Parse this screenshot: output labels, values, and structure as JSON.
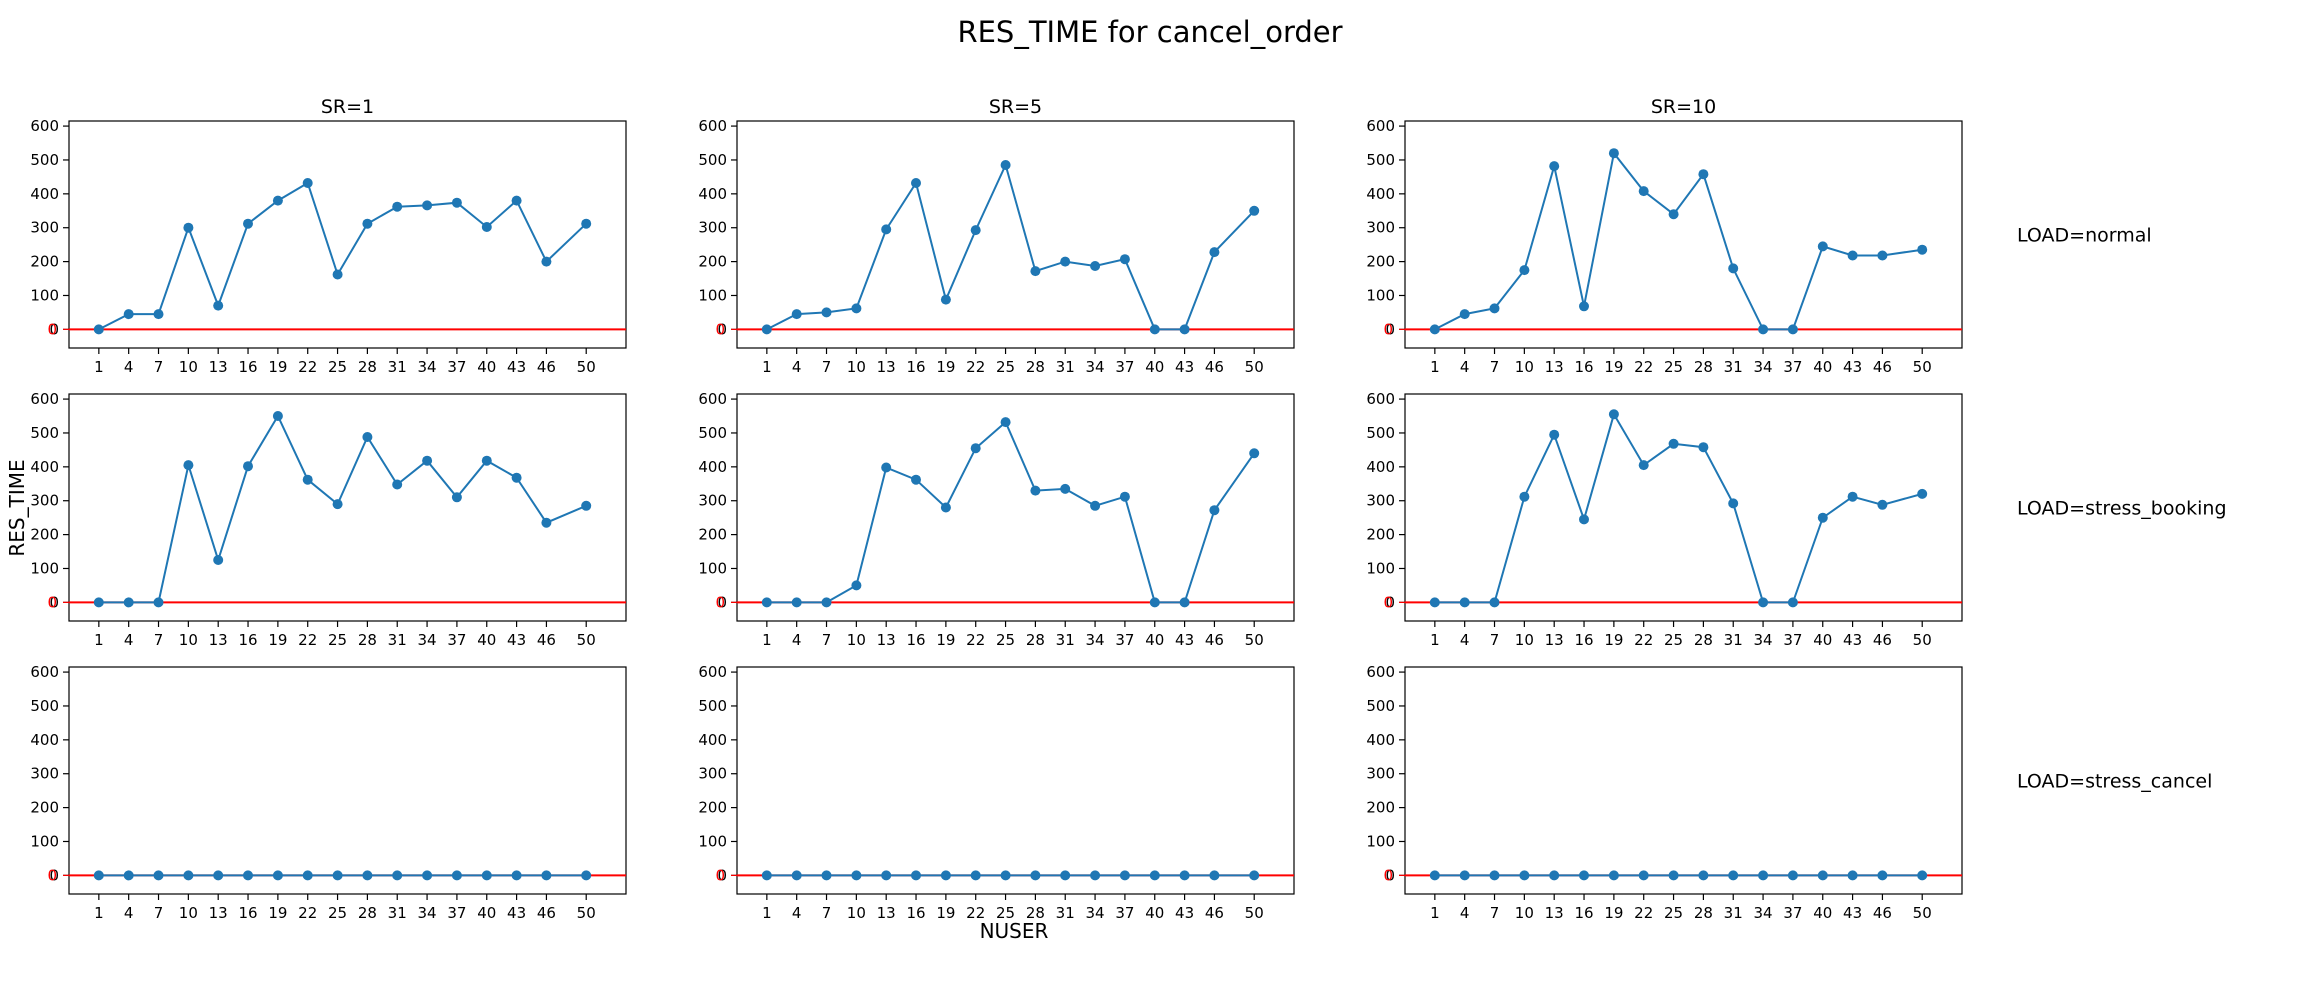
{
  "figure": {
    "title": "RES_TIME for cancel_order",
    "xlabel": "NUSER",
    "ylabel": "RES_TIME",
    "line_color": "#1f77b4",
    "reference_line_color": "#ff0000",
    "reference_value": 0
  },
  "chart_data": [
    {
      "type": "line",
      "col_title": "SR=1",
      "row_label": "LOAD=normal",
      "x": [
        1,
        4,
        7,
        10,
        13,
        16,
        19,
        22,
        25,
        28,
        31,
        34,
        37,
        40,
        43,
        46,
        50
      ],
      "y": [
        0,
        45,
        45,
        300,
        70,
        312,
        380,
        432,
        162,
        312,
        362,
        366,
        374,
        302,
        380,
        200,
        312
      ],
      "ylim": [
        -55,
        615
      ],
      "yticks": [
        0,
        100,
        200,
        300,
        400,
        500,
        600
      ]
    },
    {
      "type": "line",
      "col_title": "SR=5",
      "row_label": "LOAD=normal",
      "x": [
        1,
        4,
        7,
        10,
        13,
        16,
        19,
        22,
        25,
        28,
        31,
        34,
        37,
        40,
        43,
        46,
        50
      ],
      "y": [
        0,
        45,
        50,
        62,
        295,
        432,
        88,
        293,
        485,
        172,
        200,
        187,
        207,
        0,
        0,
        228,
        350
      ],
      "ylim": [
        -55,
        615
      ],
      "yticks": [
        0,
        100,
        200,
        300,
        400,
        500,
        600
      ]
    },
    {
      "type": "line",
      "col_title": "SR=10",
      "row_label": "LOAD=normal",
      "x": [
        1,
        4,
        7,
        10,
        13,
        16,
        19,
        22,
        25,
        28,
        31,
        34,
        37,
        40,
        43,
        46,
        50
      ],
      "y": [
        0,
        45,
        62,
        175,
        482,
        68,
        520,
        408,
        340,
        458,
        180,
        0,
        0,
        245,
        218,
        218,
        235
      ],
      "ylim": [
        -55,
        615
      ],
      "yticks": [
        0,
        100,
        200,
        300,
        400,
        500,
        600
      ]
    },
    {
      "type": "line",
      "col_title": "SR=1",
      "row_label": "LOAD=stress_booking",
      "x": [
        1,
        4,
        7,
        10,
        13,
        16,
        19,
        22,
        25,
        28,
        31,
        34,
        37,
        40,
        43,
        46,
        50
      ],
      "y": [
        0,
        0,
        0,
        405,
        125,
        402,
        550,
        362,
        290,
        488,
        348,
        418,
        310,
        418,
        368,
        235,
        285
      ],
      "ylim": [
        -55,
        615
      ],
      "yticks": [
        0,
        100,
        200,
        300,
        400,
        500,
        600
      ]
    },
    {
      "type": "line",
      "col_title": "SR=5",
      "row_label": "LOAD=stress_booking",
      "x": [
        1,
        4,
        7,
        10,
        13,
        16,
        19,
        22,
        25,
        28,
        31,
        34,
        37,
        40,
        43,
        46,
        50
      ],
      "y": [
        0,
        0,
        0,
        50,
        398,
        362,
        280,
        455,
        532,
        330,
        335,
        285,
        312,
        0,
        0,
        272,
        440
      ],
      "ylim": [
        -55,
        615
      ],
      "yticks": [
        0,
        100,
        200,
        300,
        400,
        500,
        600
      ]
    },
    {
      "type": "line",
      "col_title": "SR=10",
      "row_label": "LOAD=stress_booking",
      "x": [
        1,
        4,
        7,
        10,
        13,
        16,
        19,
        22,
        25,
        28,
        31,
        34,
        37,
        40,
        43,
        46,
        50
      ],
      "y": [
        0,
        0,
        0,
        312,
        495,
        245,
        555,
        405,
        468,
        458,
        292,
        0,
        0,
        250,
        312,
        288,
        320
      ],
      "ylim": [
        -55,
        615
      ],
      "yticks": [
        0,
        100,
        200,
        300,
        400,
        500,
        600
      ]
    },
    {
      "type": "line",
      "col_title": "SR=1",
      "row_label": "LOAD=stress_cancel",
      "x": [
        1,
        4,
        7,
        10,
        13,
        16,
        19,
        22,
        25,
        28,
        31,
        34,
        37,
        40,
        43,
        46,
        50
      ],
      "y": [
        0,
        0,
        0,
        0,
        0,
        0,
        0,
        0,
        0,
        0,
        0,
        0,
        0,
        0,
        0,
        0,
        0
      ],
      "ylim": [
        -55,
        615
      ],
      "yticks": [
        0,
        100,
        200,
        300,
        400,
        500,
        600
      ]
    },
    {
      "type": "line",
      "col_title": "SR=5",
      "row_label": "LOAD=stress_cancel",
      "x": [
        1,
        4,
        7,
        10,
        13,
        16,
        19,
        22,
        25,
        28,
        31,
        34,
        37,
        40,
        43,
        46,
        50
      ],
      "y": [
        0,
        0,
        0,
        0,
        0,
        0,
        0,
        0,
        0,
        0,
        0,
        0,
        0,
        0,
        0,
        0,
        0
      ],
      "ylim": [
        -55,
        615
      ],
      "yticks": [
        0,
        100,
        200,
        300,
        400,
        500,
        600
      ]
    },
    {
      "type": "line",
      "col_title": "SR=10",
      "row_label": "LOAD=stress_cancel",
      "x": [
        1,
        4,
        7,
        10,
        13,
        16,
        19,
        22,
        25,
        28,
        31,
        34,
        37,
        40,
        43,
        46,
        50
      ],
      "y": [
        0,
        0,
        0,
        0,
        0,
        0,
        0,
        0,
        0,
        0,
        0,
        0,
        0,
        0,
        0,
        0,
        0
      ],
      "ylim": [
        -55,
        615
      ],
      "yticks": [
        0,
        100,
        200,
        300,
        400,
        500,
        600
      ]
    }
  ]
}
